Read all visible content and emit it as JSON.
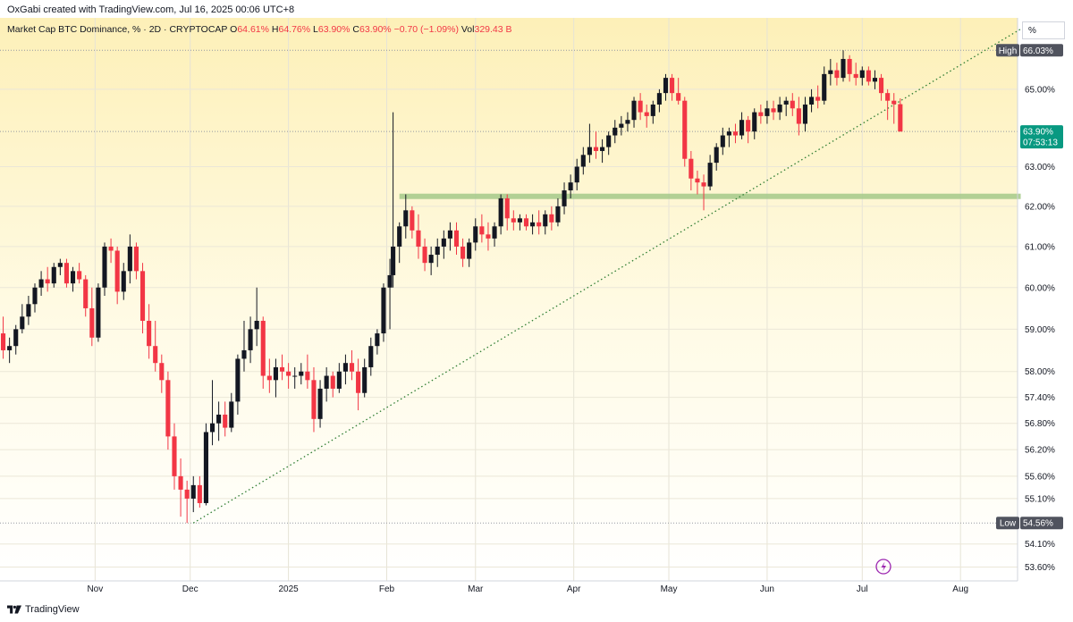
{
  "attribution": "OxGabi created with TradingView.com, Jul 16, 2025 00:06 UTC+8",
  "legend": {
    "symbol": "Market Cap BTC Dominance, % · 2D · CRYPTOCAP",
    "open_label": "O",
    "open": "64.61%",
    "high_label": "H",
    "high": "64.76%",
    "low_label": "L",
    "low": "63.90%",
    "close_label": "C",
    "close": "63.90%",
    "change": "−0.70 (−1.09%)",
    "vol_label": "Vol",
    "vol": "329.43 B"
  },
  "scale_mode": "%",
  "footer": {
    "brand": "TradingView"
  },
  "colors": {
    "up": "#131722",
    "down": "#f23645",
    "support": "#a5c98a",
    "trendline": "#2e7d32",
    "bg_top": "#fdf0b8",
    "bg_bottom": "#ffffff",
    "last_badge": "#089981"
  },
  "badges": {
    "high_label": "High",
    "high_value": "66.03%",
    "low_label": "Low",
    "low_value": "54.56%",
    "last_value": "63.90%",
    "countdown": "07:53:13"
  },
  "chart_data": {
    "type": "candlestick",
    "title": "Market Cap BTC Dominance, % · 2D · CRYPTOCAP",
    "y_scale": "log",
    "y_ticks": [
      "53.60%",
      "54.10%",
      "55.10%",
      "55.60%",
      "56.20%",
      "56.80%",
      "57.40%",
      "58.00%",
      "59.00%",
      "60.00%",
      "61.00%",
      "62.00%",
      "63.00%",
      "65.00%"
    ],
    "x_ticks": [
      "Nov",
      "Dec",
      "2025",
      "Feb",
      "Mar",
      "Apr",
      "May",
      "Jun",
      "Jul",
      "Aug"
    ],
    "x_ticks_dates": [
      "2024-11-01",
      "2024-12-01",
      "2025-01-01",
      "2025-02-01",
      "2025-03-01",
      "2025-04-01",
      "2025-05-01",
      "2025-06-01",
      "2025-07-01",
      "2025-08-01"
    ],
    "x_range": [
      "2024-10-02",
      "2025-08-19"
    ],
    "ylim": [
      53.3,
      66.9
    ],
    "high_line": 66.03,
    "low_line": 54.56,
    "last_price_line": 63.9,
    "support_zone": {
      "value": 62.25,
      "from": "2025-02-05",
      "to": "2025-08-20"
    },
    "trendline": {
      "from": [
        "2024-12-02",
        54.56
      ],
      "to": [
        "2025-08-20",
        66.6
      ]
    },
    "candles": [
      {
        "d": "2024-10-03",
        "o": 58.9,
        "h": 59.3,
        "l": 58.3,
        "c": 58.5
      },
      {
        "d": "2024-10-05",
        "o": 58.5,
        "h": 58.8,
        "l": 58.2,
        "c": 58.6
      },
      {
        "d": "2024-10-07",
        "o": 58.6,
        "h": 59.1,
        "l": 58.4,
        "c": 59.0
      },
      {
        "d": "2024-10-09",
        "o": 59.0,
        "h": 59.6,
        "l": 58.9,
        "c": 59.3
      },
      {
        "d": "2024-10-11",
        "o": 59.3,
        "h": 59.8,
        "l": 59.1,
        "c": 59.6
      },
      {
        "d": "2024-10-13",
        "o": 59.6,
        "h": 60.1,
        "l": 59.4,
        "c": 60.0
      },
      {
        "d": "2024-10-15",
        "o": 60.0,
        "h": 60.4,
        "l": 59.8,
        "c": 60.2
      },
      {
        "d": "2024-10-17",
        "o": 60.2,
        "h": 60.5,
        "l": 59.9,
        "c": 60.1
      },
      {
        "d": "2024-10-19",
        "o": 60.1,
        "h": 60.6,
        "l": 60.0,
        "c": 60.5
      },
      {
        "d": "2024-10-21",
        "o": 60.5,
        "h": 60.7,
        "l": 60.3,
        "c": 60.6
      },
      {
        "d": "2024-10-23",
        "o": 60.6,
        "h": 60.7,
        "l": 60.0,
        "c": 60.1
      },
      {
        "d": "2024-10-25",
        "o": 60.1,
        "h": 60.5,
        "l": 59.9,
        "c": 60.4
      },
      {
        "d": "2024-10-27",
        "o": 60.4,
        "h": 60.6,
        "l": 60.1,
        "c": 60.2
      },
      {
        "d": "2024-10-29",
        "o": 60.2,
        "h": 60.3,
        "l": 59.3,
        "c": 59.5
      },
      {
        "d": "2024-10-31",
        "o": 59.5,
        "h": 60.0,
        "l": 58.6,
        "c": 58.8
      },
      {
        "d": "2024-11-02",
        "o": 58.8,
        "h": 60.1,
        "l": 58.7,
        "c": 60.0
      },
      {
        "d": "2024-11-04",
        "o": 60.0,
        "h": 61.1,
        "l": 59.8,
        "c": 61.0
      },
      {
        "d": "2024-11-06",
        "o": 61.0,
        "h": 61.2,
        "l": 60.6,
        "c": 60.9
      },
      {
        "d": "2024-11-08",
        "o": 60.9,
        "h": 61.0,
        "l": 59.6,
        "c": 59.9
      },
      {
        "d": "2024-11-10",
        "o": 59.9,
        "h": 60.6,
        "l": 59.7,
        "c": 60.4
      },
      {
        "d": "2024-11-12",
        "o": 60.4,
        "h": 61.3,
        "l": 60.1,
        "c": 61.0
      },
      {
        "d": "2024-11-14",
        "o": 61.0,
        "h": 61.1,
        "l": 60.2,
        "c": 60.4
      },
      {
        "d": "2024-11-16",
        "o": 60.4,
        "h": 60.6,
        "l": 58.9,
        "c": 59.2
      },
      {
        "d": "2024-11-18",
        "o": 59.2,
        "h": 59.6,
        "l": 58.3,
        "c": 58.6
      },
      {
        "d": "2024-11-20",
        "o": 58.6,
        "h": 59.2,
        "l": 58.0,
        "c": 58.2
      },
      {
        "d": "2024-11-22",
        "o": 58.2,
        "h": 58.4,
        "l": 57.5,
        "c": 57.8
      },
      {
        "d": "2024-11-24",
        "o": 57.8,
        "h": 58.0,
        "l": 56.2,
        "c": 56.5
      },
      {
        "d": "2024-11-26",
        "o": 56.5,
        "h": 56.8,
        "l": 55.3,
        "c": 55.6
      },
      {
        "d": "2024-11-28",
        "o": 55.6,
        "h": 56.0,
        "l": 54.7,
        "c": 55.3
      },
      {
        "d": "2024-11-30",
        "o": 55.3,
        "h": 55.5,
        "l": 54.56,
        "c": 55.1
      },
      {
        "d": "2024-12-02",
        "o": 55.1,
        "h": 55.6,
        "l": 54.8,
        "c": 55.4
      },
      {
        "d": "2024-12-04",
        "o": 55.4,
        "h": 55.6,
        "l": 54.9,
        "c": 55.0
      },
      {
        "d": "2024-12-06",
        "o": 55.0,
        "h": 56.8,
        "l": 54.95,
        "c": 56.6
      },
      {
        "d": "2024-12-08",
        "o": 56.6,
        "h": 57.8,
        "l": 56.3,
        "c": 56.8
      },
      {
        "d": "2024-12-10",
        "o": 56.8,
        "h": 57.3,
        "l": 56.4,
        "c": 57.0
      },
      {
        "d": "2024-12-12",
        "o": 57.0,
        "h": 57.3,
        "l": 56.5,
        "c": 56.7
      },
      {
        "d": "2024-12-14",
        "o": 56.7,
        "h": 57.5,
        "l": 56.6,
        "c": 57.3
      },
      {
        "d": "2024-12-16",
        "o": 57.3,
        "h": 58.4,
        "l": 57.0,
        "c": 58.3
      },
      {
        "d": "2024-12-18",
        "o": 58.3,
        "h": 59.2,
        "l": 58.0,
        "c": 58.5
      },
      {
        "d": "2024-12-20",
        "o": 58.5,
        "h": 59.3,
        "l": 58.2,
        "c": 59.0
      },
      {
        "d": "2024-12-22",
        "o": 59.0,
        "h": 60.0,
        "l": 58.6,
        "c": 59.2
      },
      {
        "d": "2024-12-24",
        "o": 59.2,
        "h": 59.3,
        "l": 57.6,
        "c": 57.9
      },
      {
        "d": "2024-12-26",
        "o": 57.9,
        "h": 58.3,
        "l": 57.5,
        "c": 57.8
      },
      {
        "d": "2024-12-28",
        "o": 57.8,
        "h": 58.3,
        "l": 57.4,
        "c": 58.1
      },
      {
        "d": "2024-12-30",
        "o": 58.1,
        "h": 58.4,
        "l": 57.8,
        "c": 58.0
      },
      {
        "d": "2025-01-01",
        "o": 58.0,
        "h": 58.2,
        "l": 57.6,
        "c": 57.9
      },
      {
        "d": "2025-01-03",
        "o": 57.9,
        "h": 58.1,
        "l": 57.6,
        "c": 57.9
      },
      {
        "d": "2025-01-05",
        "o": 57.9,
        "h": 58.2,
        "l": 57.7,
        "c": 58.0
      },
      {
        "d": "2025-01-07",
        "o": 58.0,
        "h": 58.4,
        "l": 57.6,
        "c": 57.8
      },
      {
        "d": "2025-01-09",
        "o": 57.8,
        "h": 58.1,
        "l": 56.6,
        "c": 56.9
      },
      {
        "d": "2025-01-11",
        "o": 56.9,
        "h": 57.8,
        "l": 56.7,
        "c": 57.6
      },
      {
        "d": "2025-01-13",
        "o": 57.6,
        "h": 58.1,
        "l": 57.3,
        "c": 57.9
      },
      {
        "d": "2025-01-15",
        "o": 57.9,
        "h": 58.0,
        "l": 57.4,
        "c": 57.6
      },
      {
        "d": "2025-01-17",
        "o": 57.6,
        "h": 58.2,
        "l": 57.5,
        "c": 58.0
      },
      {
        "d": "2025-01-19",
        "o": 58.0,
        "h": 58.4,
        "l": 57.7,
        "c": 58.2
      },
      {
        "d": "2025-01-21",
        "o": 58.2,
        "h": 58.5,
        "l": 57.8,
        "c": 58.0
      },
      {
        "d": "2025-01-23",
        "o": 58.0,
        "h": 58.3,
        "l": 57.1,
        "c": 57.5
      },
      {
        "d": "2025-01-25",
        "o": 57.5,
        "h": 58.3,
        "l": 57.4,
        "c": 58.1
      },
      {
        "d": "2025-01-27",
        "o": 58.1,
        "h": 58.8,
        "l": 57.9,
        "c": 58.6
      },
      {
        "d": "2025-01-29",
        "o": 58.6,
        "h": 59.0,
        "l": 58.4,
        "c": 58.9
      },
      {
        "d": "2025-01-31",
        "o": 58.9,
        "h": 60.1,
        "l": 58.7,
        "c": 60.0
      },
      {
        "d": "2025-02-02",
        "o": 60.0,
        "h": 60.7,
        "l": 59.0,
        "c": 60.3
      },
      {
        "d": "2025-02-03",
        "o": 60.3,
        "h": 64.4,
        "l": 60.0,
        "c": 61.0
      },
      {
        "d": "2025-02-05",
        "o": 61.0,
        "h": 61.6,
        "l": 60.6,
        "c": 61.5
      },
      {
        "d": "2025-02-07",
        "o": 61.5,
        "h": 62.3,
        "l": 61.2,
        "c": 61.9
      },
      {
        "d": "2025-02-09",
        "o": 61.9,
        "h": 62.0,
        "l": 61.2,
        "c": 61.4
      },
      {
        "d": "2025-02-11",
        "o": 61.4,
        "h": 61.8,
        "l": 60.7,
        "c": 61.0
      },
      {
        "d": "2025-02-13",
        "o": 61.0,
        "h": 61.2,
        "l": 60.4,
        "c": 60.6
      },
      {
        "d": "2025-02-15",
        "o": 60.6,
        "h": 61.0,
        "l": 60.3,
        "c": 60.8
      },
      {
        "d": "2025-02-17",
        "o": 60.8,
        "h": 61.2,
        "l": 60.5,
        "c": 61.0
      },
      {
        "d": "2025-02-19",
        "o": 61.0,
        "h": 61.4,
        "l": 60.7,
        "c": 61.2
      },
      {
        "d": "2025-02-21",
        "o": 61.2,
        "h": 61.6,
        "l": 60.9,
        "c": 61.4
      },
      {
        "d": "2025-02-23",
        "o": 61.4,
        "h": 61.6,
        "l": 60.8,
        "c": 61.0
      },
      {
        "d": "2025-02-25",
        "o": 61.0,
        "h": 61.2,
        "l": 60.5,
        "c": 60.7
      },
      {
        "d": "2025-02-27",
        "o": 60.7,
        "h": 61.2,
        "l": 60.5,
        "c": 61.1
      },
      {
        "d": "2025-03-01",
        "o": 61.1,
        "h": 61.7,
        "l": 60.9,
        "c": 61.5
      },
      {
        "d": "2025-03-03",
        "o": 61.5,
        "h": 61.8,
        "l": 61.1,
        "c": 61.3
      },
      {
        "d": "2025-03-05",
        "o": 61.3,
        "h": 61.6,
        "l": 60.9,
        "c": 61.2
      },
      {
        "d": "2025-03-07",
        "o": 61.2,
        "h": 61.6,
        "l": 61.0,
        "c": 61.5
      },
      {
        "d": "2025-03-09",
        "o": 61.5,
        "h": 62.3,
        "l": 61.3,
        "c": 62.2
      },
      {
        "d": "2025-03-11",
        "o": 62.2,
        "h": 62.3,
        "l": 61.4,
        "c": 61.7
      },
      {
        "d": "2025-03-13",
        "o": 61.7,
        "h": 61.9,
        "l": 61.4,
        "c": 61.6
      },
      {
        "d": "2025-03-15",
        "o": 61.6,
        "h": 61.8,
        "l": 61.4,
        "c": 61.7
      },
      {
        "d": "2025-03-17",
        "o": 61.7,
        "h": 61.8,
        "l": 61.4,
        "c": 61.5
      },
      {
        "d": "2025-03-19",
        "o": 61.5,
        "h": 61.8,
        "l": 61.3,
        "c": 61.6
      },
      {
        "d": "2025-03-21",
        "o": 61.6,
        "h": 61.9,
        "l": 61.3,
        "c": 61.5
      },
      {
        "d": "2025-03-23",
        "o": 61.5,
        "h": 61.9,
        "l": 61.3,
        "c": 61.8
      },
      {
        "d": "2025-03-25",
        "o": 61.8,
        "h": 62.0,
        "l": 61.4,
        "c": 61.6
      },
      {
        "d": "2025-03-27",
        "o": 61.6,
        "h": 62.2,
        "l": 61.5,
        "c": 62.0
      },
      {
        "d": "2025-03-29",
        "o": 62.0,
        "h": 62.6,
        "l": 61.8,
        "c": 62.4
      },
      {
        "d": "2025-03-31",
        "o": 62.4,
        "h": 62.8,
        "l": 62.2,
        "c": 62.6
      },
      {
        "d": "2025-04-02",
        "o": 62.6,
        "h": 63.2,
        "l": 62.4,
        "c": 63.0
      },
      {
        "d": "2025-04-04",
        "o": 63.0,
        "h": 63.5,
        "l": 62.8,
        "c": 63.3
      },
      {
        "d": "2025-04-06",
        "o": 63.3,
        "h": 64.1,
        "l": 63.1,
        "c": 63.5
      },
      {
        "d": "2025-04-08",
        "o": 63.5,
        "h": 63.9,
        "l": 63.2,
        "c": 63.4
      },
      {
        "d": "2025-04-10",
        "o": 63.4,
        "h": 63.7,
        "l": 63.1,
        "c": 63.5
      },
      {
        "d": "2025-04-12",
        "o": 63.5,
        "h": 63.9,
        "l": 63.3,
        "c": 63.8
      },
      {
        "d": "2025-04-14",
        "o": 63.8,
        "h": 64.2,
        "l": 63.6,
        "c": 64.0
      },
      {
        "d": "2025-04-16",
        "o": 64.0,
        "h": 64.3,
        "l": 63.8,
        "c": 64.1
      },
      {
        "d": "2025-04-18",
        "o": 64.1,
        "h": 64.4,
        "l": 63.9,
        "c": 64.2
      },
      {
        "d": "2025-04-20",
        "o": 64.2,
        "h": 64.8,
        "l": 64.0,
        "c": 64.7
      },
      {
        "d": "2025-04-22",
        "o": 64.7,
        "h": 64.9,
        "l": 64.2,
        "c": 64.4
      },
      {
        "d": "2025-04-24",
        "o": 64.4,
        "h": 64.6,
        "l": 64.0,
        "c": 64.3
      },
      {
        "d": "2025-04-26",
        "o": 64.3,
        "h": 64.7,
        "l": 64.1,
        "c": 64.6
      },
      {
        "d": "2025-04-28",
        "o": 64.6,
        "h": 65.0,
        "l": 64.4,
        "c": 64.9
      },
      {
        "d": "2025-04-30",
        "o": 64.9,
        "h": 65.4,
        "l": 64.7,
        "c": 65.3
      },
      {
        "d": "2025-05-02",
        "o": 65.3,
        "h": 65.4,
        "l": 64.7,
        "c": 64.9
      },
      {
        "d": "2025-05-04",
        "o": 64.9,
        "h": 65.3,
        "l": 64.6,
        "c": 64.7
      },
      {
        "d": "2025-05-06",
        "o": 64.7,
        "h": 64.8,
        "l": 63.0,
        "c": 63.2
      },
      {
        "d": "2025-05-08",
        "o": 63.2,
        "h": 63.4,
        "l": 62.4,
        "c": 62.7
      },
      {
        "d": "2025-05-10",
        "o": 62.7,
        "h": 62.9,
        "l": 62.3,
        "c": 62.6
      },
      {
        "d": "2025-05-12",
        "o": 62.6,
        "h": 62.8,
        "l": 61.9,
        "c": 62.5
      },
      {
        "d": "2025-05-14",
        "o": 62.5,
        "h": 63.3,
        "l": 62.4,
        "c": 63.1
      },
      {
        "d": "2025-05-16",
        "o": 63.1,
        "h": 63.6,
        "l": 62.9,
        "c": 63.5
      },
      {
        "d": "2025-05-18",
        "o": 63.5,
        "h": 64.0,
        "l": 63.3,
        "c": 63.8
      },
      {
        "d": "2025-05-20",
        "o": 63.8,
        "h": 64.0,
        "l": 63.5,
        "c": 63.9
      },
      {
        "d": "2025-05-22",
        "o": 63.9,
        "h": 64.1,
        "l": 63.6,
        "c": 63.8
      },
      {
        "d": "2025-05-24",
        "o": 63.8,
        "h": 64.4,
        "l": 63.7,
        "c": 64.2
      },
      {
        "d": "2025-05-26",
        "o": 64.2,
        "h": 64.3,
        "l": 63.6,
        "c": 63.9
      },
      {
        "d": "2025-05-28",
        "o": 63.9,
        "h": 64.5,
        "l": 63.7,
        "c": 64.4
      },
      {
        "d": "2025-05-30",
        "o": 64.4,
        "h": 64.6,
        "l": 64.1,
        "c": 64.3
      },
      {
        "d": "2025-06-01",
        "o": 64.3,
        "h": 64.7,
        "l": 64.1,
        "c": 64.5
      },
      {
        "d": "2025-06-03",
        "o": 64.5,
        "h": 64.7,
        "l": 64.2,
        "c": 64.4
      },
      {
        "d": "2025-06-05",
        "o": 64.4,
        "h": 64.8,
        "l": 64.2,
        "c": 64.6
      },
      {
        "d": "2025-06-07",
        "o": 64.6,
        "h": 64.8,
        "l": 64.3,
        "c": 64.7
      },
      {
        "d": "2025-06-09",
        "o": 64.7,
        "h": 64.9,
        "l": 64.3,
        "c": 64.5
      },
      {
        "d": "2025-06-11",
        "o": 64.5,
        "h": 64.8,
        "l": 63.8,
        "c": 64.1
      },
      {
        "d": "2025-06-13",
        "o": 64.1,
        "h": 64.8,
        "l": 63.9,
        "c": 64.6
      },
      {
        "d": "2025-06-15",
        "o": 64.6,
        "h": 65.0,
        "l": 64.4,
        "c": 64.8
      },
      {
        "d": "2025-06-17",
        "o": 64.8,
        "h": 65.1,
        "l": 64.5,
        "c": 64.7
      },
      {
        "d": "2025-06-19",
        "o": 64.7,
        "h": 65.6,
        "l": 64.6,
        "c": 65.4
      },
      {
        "d": "2025-06-21",
        "o": 65.4,
        "h": 65.8,
        "l": 65.1,
        "c": 65.5
      },
      {
        "d": "2025-06-23",
        "o": 65.5,
        "h": 65.7,
        "l": 65.1,
        "c": 65.3
      },
      {
        "d": "2025-06-25",
        "o": 65.3,
        "h": 66.03,
        "l": 65.2,
        "c": 65.8
      },
      {
        "d": "2025-06-27",
        "o": 65.8,
        "h": 65.9,
        "l": 65.2,
        "c": 65.4
      },
      {
        "d": "2025-06-29",
        "o": 65.4,
        "h": 65.7,
        "l": 65.1,
        "c": 65.3
      },
      {
        "d": "2025-07-01",
        "o": 65.3,
        "h": 65.6,
        "l": 65.1,
        "c": 65.5
      },
      {
        "d": "2025-07-03",
        "o": 65.5,
        "h": 65.6,
        "l": 65.1,
        "c": 65.2
      },
      {
        "d": "2025-07-05",
        "o": 65.2,
        "h": 65.5,
        "l": 65.0,
        "c": 65.3
      },
      {
        "d": "2025-07-07",
        "o": 65.3,
        "h": 65.4,
        "l": 64.7,
        "c": 64.9
      },
      {
        "d": "2025-07-09",
        "o": 64.9,
        "h": 65.0,
        "l": 64.2,
        "c": 64.7
      },
      {
        "d": "2025-07-11",
        "o": 64.7,
        "h": 64.9,
        "l": 64.1,
        "c": 64.61
      },
      {
        "d": "2025-07-13",
        "o": 64.61,
        "h": 64.76,
        "l": 63.9,
        "c": 63.9
      }
    ]
  }
}
